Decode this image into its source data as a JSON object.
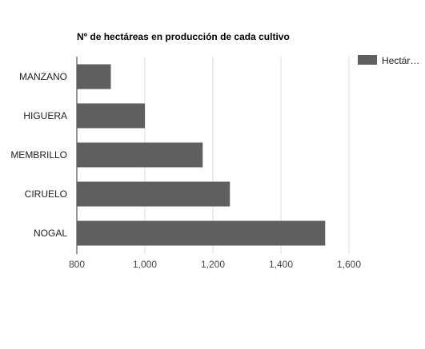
{
  "chart_data": {
    "type": "bar",
    "orientation": "horizontal",
    "title": "Nº de hectáreas en producción de cada cultivo",
    "categories": [
      "MANZANO",
      "HIGUERA",
      "MEMBRILLO",
      "CIRUELO",
      "NOGAL"
    ],
    "series": [
      {
        "name": "Hectár…",
        "values": [
          900,
          1000,
          1170,
          1250,
          1530
        ]
      }
    ],
    "xlim": [
      800,
      1600
    ],
    "x_ticks": [
      "800",
      "1,000",
      "1,200",
      "1,400",
      "1,600"
    ],
    "x_tick_values": [
      800,
      1000,
      1200,
      1400,
      1600
    ],
    "grid": true,
    "legend_position": "top-right",
    "bar_color": "#5f5f5f"
  }
}
